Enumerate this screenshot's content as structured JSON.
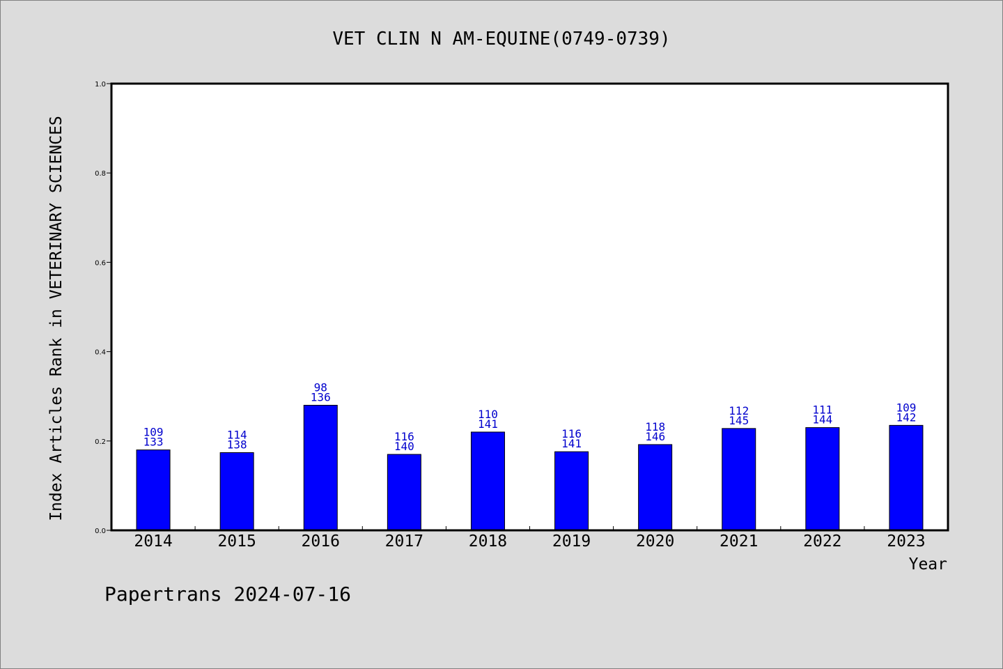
{
  "chart_data": {
    "type": "bar",
    "title": "VET CLIN N AM-EQUINE(0749-0739)",
    "xlabel": "Year",
    "ylabel": "Index Articles Rank in VETERINARY SCIENCES",
    "ylim": [
      0,
      1.0
    ],
    "yticks": [
      "0.0",
      "0.2",
      "0.4",
      "0.6",
      "0.8",
      "1.0"
    ],
    "categories": [
      "2014",
      "2015",
      "2016",
      "2017",
      "2018",
      "2019",
      "2020",
      "2021",
      "2022",
      "2023"
    ],
    "values": [
      0.18,
      0.174,
      0.28,
      0.17,
      0.22,
      0.176,
      0.192,
      0.228,
      0.23,
      0.235
    ],
    "label_top": [
      "109",
      "114",
      "98",
      "116",
      "110",
      "116",
      "118",
      "112",
      "111",
      "109"
    ],
    "label_bottom": [
      "133",
      "138",
      "136",
      "140",
      "141",
      "141",
      "146",
      "145",
      "144",
      "142"
    ],
    "bar_color": "#0000ff",
    "label_color": "#0000cd",
    "grid": false
  },
  "footer": "Papertrans 2024-07-16"
}
